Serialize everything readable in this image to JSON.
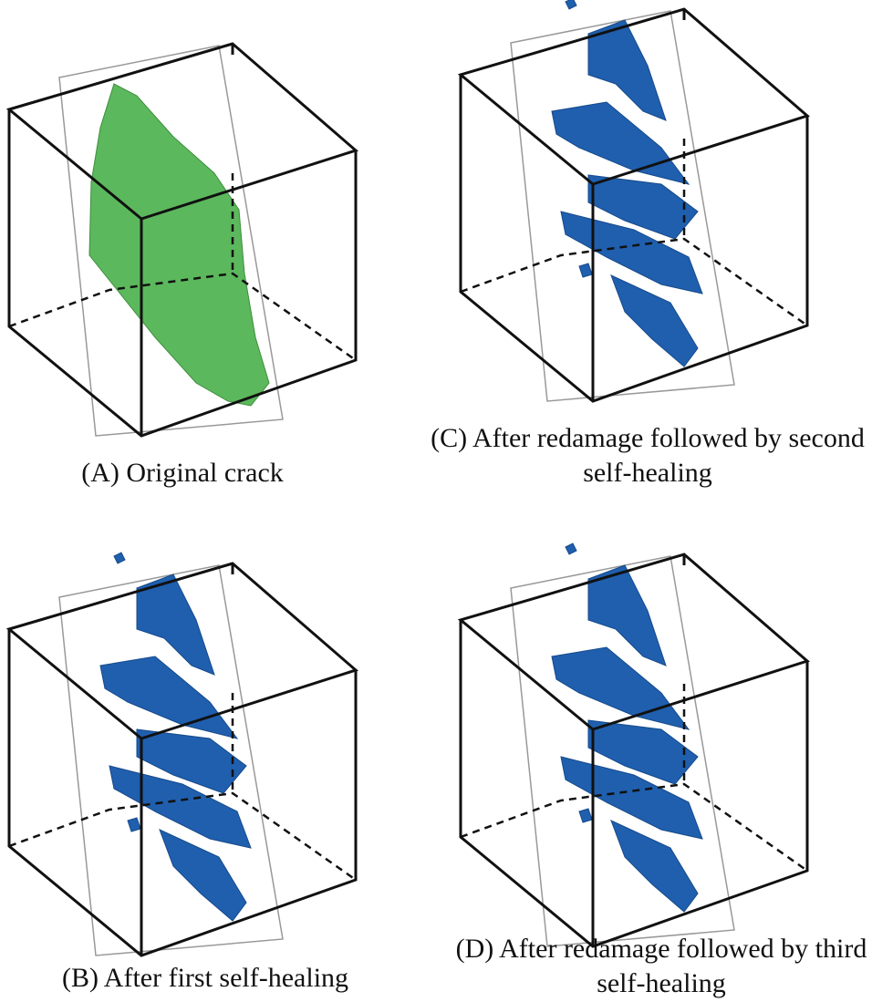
{
  "panels": [
    {
      "caption": [
        "(A) Original crack"
      ]
    },
    {
      "caption": [
        "(C) After redamage followed by second",
        "self-healing"
      ]
    },
    {
      "caption": [
        "(B) After first self-healing"
      ]
    },
    {
      "caption": [
        "(D) After redamage followed by third",
        "self-healing"
      ]
    }
  ]
}
